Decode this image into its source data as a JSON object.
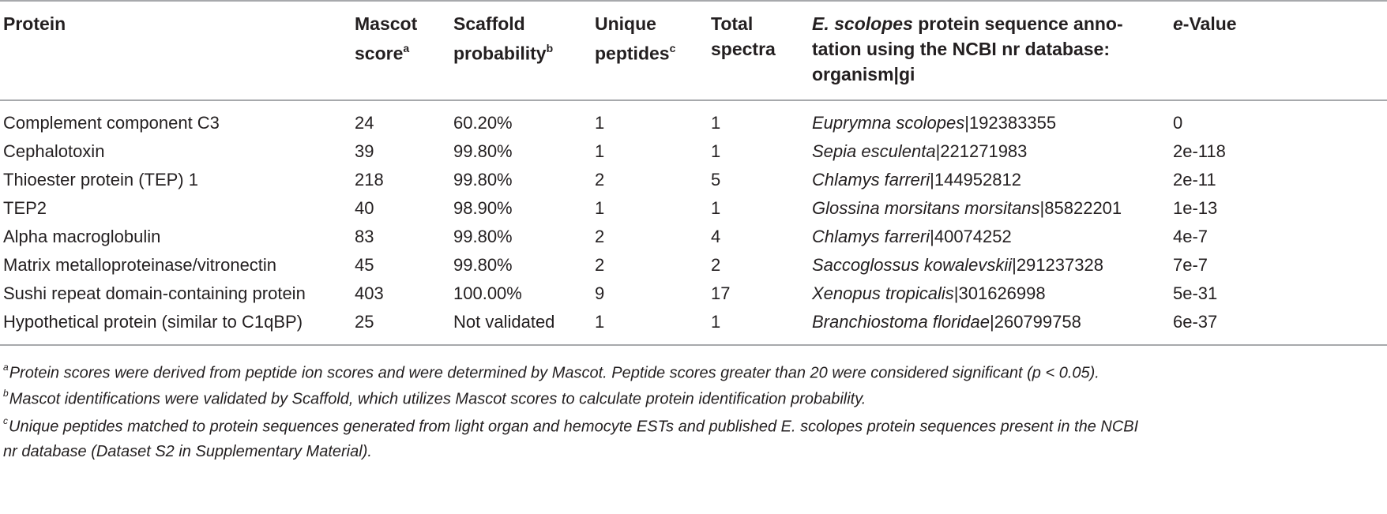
{
  "table": {
    "headers": {
      "protein": "Protein",
      "mascot_line1": "Mascot",
      "mascot_line2": "score",
      "mascot_sup": "a",
      "scaffold_line1": "Scaffold",
      "scaffold_line2": "probability",
      "scaffold_sup": "b",
      "unique_line1": "Unique",
      "unique_line2": "peptides",
      "unique_sup": "c",
      "total_line1": "Total",
      "total_line2": "spectra",
      "annotation_italic": "E. scolopes",
      "annotation_line1_rest": " protein sequence anno-",
      "annotation_line2": "tation using the NCBI nr database:",
      "annotation_line3": "organism|gi",
      "evalue_italic": "e",
      "evalue_rest": "-Value"
    },
    "rows": [
      {
        "protein": "Complement component C3",
        "mascot": "24",
        "scaffold": "60.20%",
        "unique": "1",
        "total": "1",
        "organism": "Euprymna scolopes",
        "gi": "|192383355",
        "evalue": "0"
      },
      {
        "protein": "Cephalotoxin",
        "mascot": "39",
        "scaffold": "99.80%",
        "unique": "1",
        "total": "1",
        "organism": "Sepia esculenta",
        "gi": "|221271983",
        "evalue": "2e-118"
      },
      {
        "protein": "Thioester protein (TEP) 1",
        "mascot": "218",
        "scaffold": "99.80%",
        "unique": "2",
        "total": "5",
        "organism": "Chlamys farreri",
        "gi": "|144952812",
        "evalue": "2e-11"
      },
      {
        "protein": "TEP2",
        "mascot": "40",
        "scaffold": "98.90%",
        "unique": "1",
        "total": "1",
        "organism": "Glossina morsitans morsitans",
        "gi": "|85822201",
        "evalue": "1e-13"
      },
      {
        "protein": "Alpha macroglobulin",
        "mascot": "83",
        "scaffold": "99.80%",
        "unique": "2",
        "total": "4",
        "organism": "Chlamys farreri",
        "gi": "|40074252",
        "evalue": "4e-7"
      },
      {
        "protein": "Matrix metalloproteinase/vitronectin",
        "mascot": "45",
        "scaffold": "99.80%",
        "unique": "2",
        "total": "2",
        "organism": "Saccoglossus kowalevskii",
        "gi": "|291237328",
        "evalue": "7e-7"
      },
      {
        "protein": "Sushi repeat domain-containing protein",
        "mascot": "403",
        "scaffold": "100.00%",
        "unique": "9",
        "total": "17",
        "organism": "Xenopus tropicalis",
        "gi": "|301626998",
        "evalue": "5e-31"
      },
      {
        "protein": "Hypothetical protein (similar to C1qBP)",
        "mascot": "25",
        "scaffold": "Not validated",
        "unique": "1",
        "total": "1",
        "organism": "Branchiostoma floridae",
        "gi": "|260799758",
        "evalue": "6e-37"
      }
    ]
  },
  "footnotes": {
    "a_mark": "a",
    "a_text": "Protein scores were derived from peptide ion scores and were determined by Mascot. Peptide scores greater than 20 were considered significant (p < 0.05).",
    "b_mark": "b",
    "b_text": "Mascot identifications were validated by Scaffold, which utilizes Mascot scores to calculate protein identification probability.",
    "c_mark": "c",
    "c_line1": "Unique peptides matched to protein sequences generated from light organ and hemocyte ESTs and published E. scolopes protein sequences present in the NCBI",
    "c_line2": "nr database (Dataset S2 in Supplementary Material)."
  }
}
